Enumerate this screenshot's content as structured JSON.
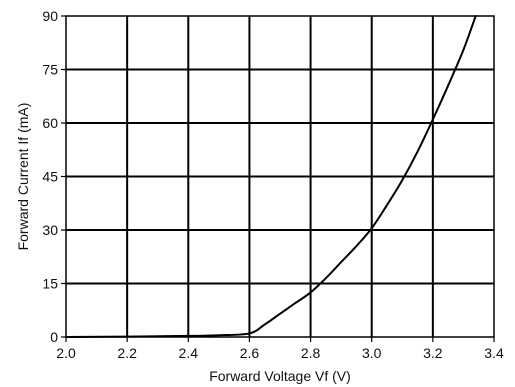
{
  "chart_data": {
    "type": "line",
    "title": "",
    "xlabel": "Forward Voltage Vf (V)",
    "ylabel": "Forward Current If (mA)",
    "xlim": [
      2.0,
      3.4
    ],
    "ylim": [
      0,
      90
    ],
    "x_ticks": [
      2.0,
      2.2,
      2.4,
      2.6,
      2.8,
      3.0,
      3.2,
      3.4
    ],
    "x_tick_labels": [
      "2.0",
      "2.2",
      "2.4",
      "2.6",
      "2.8",
      "3.0",
      "3.2",
      "3.4"
    ],
    "y_ticks": [
      0,
      15,
      30,
      45,
      60,
      75,
      90
    ],
    "y_tick_labels": [
      "0",
      "15",
      "30",
      "45",
      "60",
      "75",
      "90"
    ],
    "grid": true,
    "legend": "none",
    "series": [
      {
        "color": "#000000",
        "x": [
          2.0,
          2.2,
          2.4,
          2.5,
          2.6,
          2.65,
          2.7,
          2.75,
          2.8,
          2.85,
          2.9,
          2.95,
          3.0,
          3.05,
          3.1,
          3.15,
          3.2,
          3.25,
          3.3,
          3.34
        ],
        "y": [
          0.0,
          0.1,
          0.3,
          0.5,
          1.0,
          3.5,
          6.5,
          9.5,
          12.5,
          16.5,
          21.0,
          25.5,
          30.5,
          37.0,
          44.0,
          52.0,
          61.0,
          70.5,
          80.5,
          90.0
        ]
      }
    ]
  }
}
